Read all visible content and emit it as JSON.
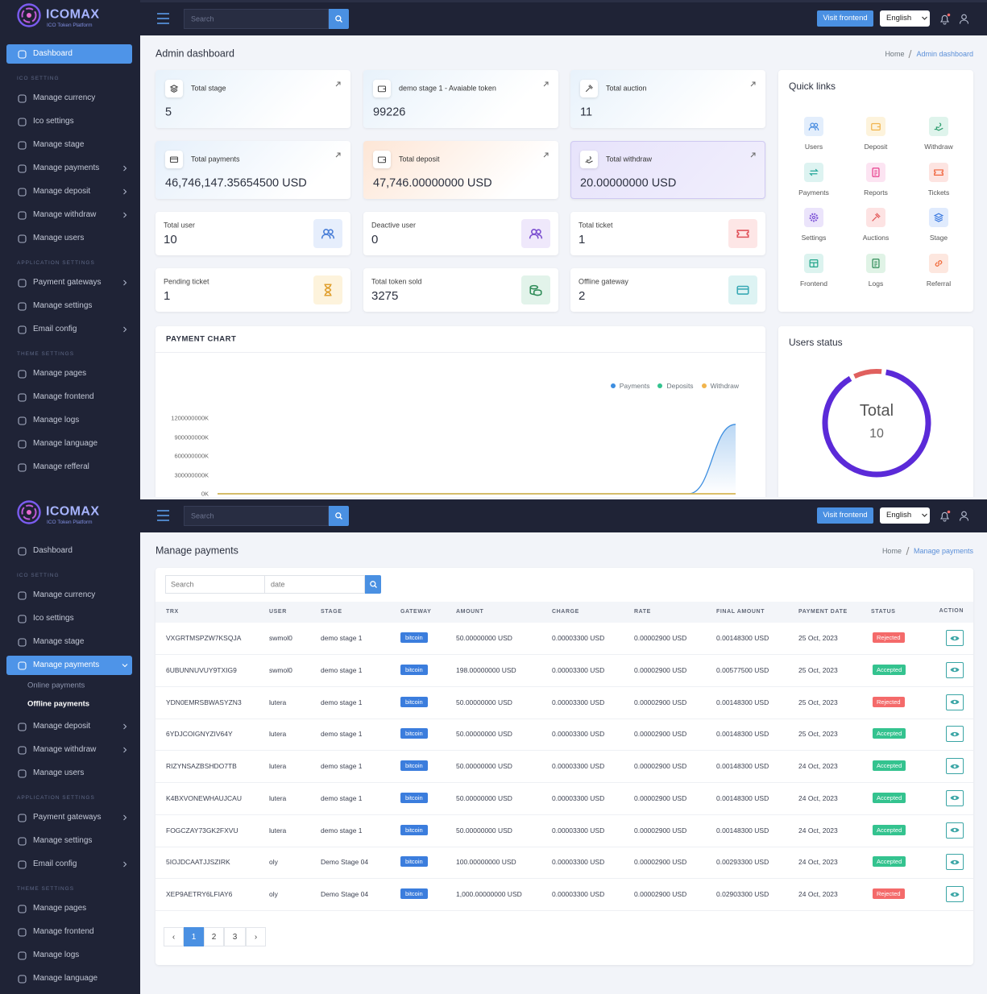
{
  "dashboard_screen": {
    "brand": {
      "name": "ICOMAX",
      "tagline": "ICO Token Platform"
    },
    "search_placeholder": "Search",
    "visit_frontend": "Visit frontend",
    "language": "English",
    "sidebar": {
      "dashboard": "Dashboard",
      "groups": [
        {
          "heading": "ICO SETTING",
          "items": [
            "Manage currency",
            "Ico settings",
            "Manage stage",
            "Manage payments",
            "Manage deposit",
            "Manage withdraw",
            "Manage users"
          ]
        },
        {
          "heading": "APPLICATION SETTINGS",
          "items": [
            "Payment gateways",
            "Manage settings",
            "Email config"
          ]
        },
        {
          "heading": "THEME SETTINGS",
          "items": [
            "Manage pages",
            "Manage frontend",
            "Manage logs",
            "Manage language",
            "Manage refferal"
          ]
        }
      ]
    },
    "page_title": "Admin dashboard",
    "breadcrumb": [
      "Home",
      "Admin dashboard"
    ],
    "stat_cards": [
      {
        "label": "Total stage",
        "value": 5
      },
      {
        "label": "demo stage 1 - Avaiable token",
        "value": 99226
      },
      {
        "label": "Total auction",
        "value": 11
      },
      {
        "label": "Total payments",
        "value": "46,746,147.35654500 USD"
      },
      {
        "label": "Total deposit",
        "value": "47,746.00000000 USD"
      },
      {
        "label": "Total withdraw",
        "value": "20.00000000 USD"
      },
      {
        "label": "Total user",
        "value": 10
      },
      {
        "label": "Deactive user",
        "value": 0
      },
      {
        "label": "Total ticket",
        "value": 1
      },
      {
        "label": "Pending ticket",
        "value": 1
      },
      {
        "label": "Total token sold",
        "value": 3275
      },
      {
        "label": "Offline gateway",
        "value": 2
      }
    ],
    "quick_links": {
      "title": "Quick links",
      "items": [
        "Users",
        "Deposit",
        "Withdraw",
        "Payments",
        "Reports",
        "Tickets",
        "Settings",
        "Auctions",
        "Stage",
        "Frontend",
        "Logs",
        "Referral"
      ]
    },
    "payment_chart": {
      "type": "line",
      "title": "PAYMENT CHART",
      "categories": [
        null,
        null,
        null,
        null,
        null,
        null,
        null,
        null,
        null,
        null,
        null,
        null
      ],
      "series": [
        {
          "name": "Payments",
          "color": "#3d8ee0",
          "values": [
            0,
            0,
            0,
            0,
            0,
            0,
            0,
            0,
            0,
            0,
            0,
            1100000000
          ]
        },
        {
          "name": "Deposits",
          "color": "#34c38f",
          "values": [
            0,
            0,
            0,
            0,
            0,
            0,
            0,
            0,
            0,
            0,
            0,
            0
          ]
        },
        {
          "name": "Withdraw",
          "color": "#f1b44c",
          "values": [
            0,
            0,
            0,
            0,
            0,
            0,
            0,
            0,
            0,
            0,
            0,
            0
          ]
        }
      ],
      "ylim": [
        0,
        1200000000
      ],
      "yticks": [
        {
          "value": 0,
          "label": "0K"
        },
        {
          "value": 300000000,
          "label": "300000000K"
        },
        {
          "value": 600000000,
          "label": "600000000K"
        },
        {
          "value": 900000000,
          "label": "900000000K"
        },
        {
          "value": 1200000000,
          "label": "1200000000K"
        }
      ]
    },
    "users_status": {
      "title": "Users status",
      "center_label": "Total",
      "center_value": 10,
      "segments": [
        {
          "value": 10,
          "color": "#e0605e"
        },
        {
          "value": 90,
          "color": "#5b2ad8"
        }
      ]
    }
  },
  "payments_screen": {
    "brand": {
      "name": "ICOMAX",
      "tagline": "ICO Token Platform"
    },
    "search_placeholder": "Search",
    "visit_frontend": "Visit frontend",
    "language": "English",
    "sidebar": {
      "dashboard": "Dashboard",
      "groups": [
        {
          "heading": "ICO SETTING",
          "items": [
            "Manage currency",
            "Ico settings",
            "Manage stage",
            {
              "label": "Manage payments",
              "children": [
                "Online payments",
                "Offline payments"
              ]
            },
            "Manage deposit",
            "Manage withdraw",
            "Manage users"
          ]
        },
        {
          "heading": "APPLICATION SETTINGS",
          "items": [
            "Payment gateways",
            "Manage settings",
            "Email config"
          ]
        },
        {
          "heading": "THEME SETTINGS",
          "items": [
            "Manage pages",
            "Manage frontend",
            "Manage logs",
            "Manage language"
          ]
        }
      ]
    },
    "page_title": "Manage payments",
    "breadcrumb": [
      "Home",
      "Manage payments"
    ],
    "filters": {
      "search": "Search",
      "date": "date"
    },
    "status_colors": {
      "Rejected": "#f46a6a",
      "Accepted": "#34c38f"
    },
    "table": {
      "columns": [
        "TRX",
        "USER",
        "STAGE",
        "GATEWAY",
        "AMOUNT",
        "CHARGE",
        "RATE",
        "FINAL AMOUNT",
        "PAYMENT DATE",
        "STATUS",
        "ACTION"
      ],
      "rows": [
        [
          "VXGRTMSPZW7KSQJA",
          "swmol0",
          "demo stage 1",
          "bitcoin",
          "50.00000000 USD",
          "0.00003300 USD",
          "0.00002900 USD",
          "0.00148300 USD",
          "25 Oct, 2023",
          "Rejected"
        ],
        [
          "6UBUNNUVUY9TXIG9",
          "swmol0",
          "demo stage 1",
          "bitcoin",
          "198.00000000 USD",
          "0.00003300 USD",
          "0.00002900 USD",
          "0.00577500 USD",
          "25 Oct, 2023",
          "Accepted"
        ],
        [
          "YDN0EMRSBWASYZN3",
          "lutera",
          "demo stage 1",
          "bitcoin",
          "50.00000000 USD",
          "0.00003300 USD",
          "0.00002900 USD",
          "0.00148300 USD",
          "25 Oct, 2023",
          "Rejected"
        ],
        [
          "6YDJCOIGNYZIV64Y",
          "lutera",
          "demo stage 1",
          "bitcoin",
          "50.00000000 USD",
          "0.00003300 USD",
          "0.00002900 USD",
          "0.00148300 USD",
          "25 Oct, 2023",
          "Accepted"
        ],
        [
          "RIZYNSAZBSHDO7TB",
          "lutera",
          "demo stage 1",
          "bitcoin",
          "50.00000000 USD",
          "0.00003300 USD",
          "0.00002900 USD",
          "0.00148300 USD",
          "24 Oct, 2023",
          "Accepted"
        ],
        [
          "K4BXVONEWHAUJCAU",
          "lutera",
          "demo stage 1",
          "bitcoin",
          "50.00000000 USD",
          "0.00003300 USD",
          "0.00002900 USD",
          "0.00148300 USD",
          "24 Oct, 2023",
          "Accepted"
        ],
        [
          "FOGCZAY73GK2FXVU",
          "lutera",
          "demo stage 1",
          "bitcoin",
          "50.00000000 USD",
          "0.00003300 USD",
          "0.00002900 USD",
          "0.00148300 USD",
          "24 Oct, 2023",
          "Accepted"
        ],
        [
          "5IOJDCAATJJSZIRK",
          "oly",
          "Demo Stage 04",
          "bitcoin",
          "100.00000000 USD",
          "0.00003300 USD",
          "0.00002900 USD",
          "0.00293300 USD",
          "24 Oct, 2023",
          "Accepted"
        ],
        [
          "XEP9AETRY6LFIAY6",
          "oly",
          "Demo Stage 04",
          "bitcoin",
          "1,000.00000000 USD",
          "0.00003300 USD",
          "0.00002900 USD",
          "0.02903300 USD",
          "24 Oct, 2023",
          "Rejected"
        ]
      ]
    },
    "pagination": [
      "‹",
      "1",
      "2",
      "3",
      "›"
    ]
  }
}
